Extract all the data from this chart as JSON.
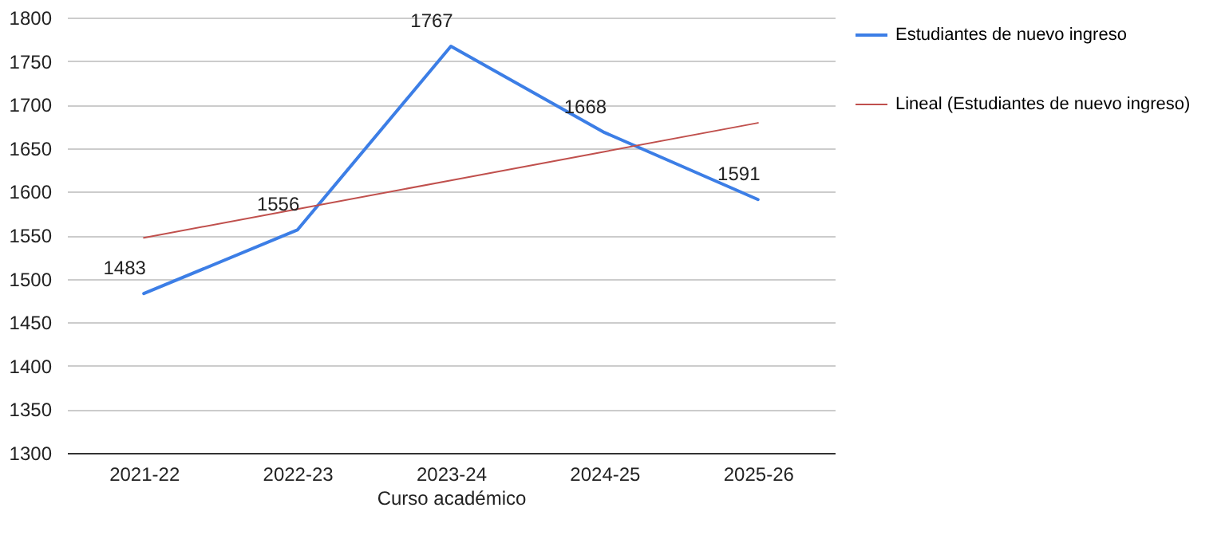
{
  "chart_data": {
    "type": "line",
    "xlabel": "Curso académico",
    "categories": [
      "2021-22",
      "2022-23",
      "2023-24",
      "2024-25",
      "2025-26"
    ],
    "series": [
      {
        "name": "Estudiantes de nuevo ingreso",
        "color": "#3c7ee6",
        "values": [
          1483,
          1556,
          1767,
          1668,
          1591
        ],
        "value_labels": [
          "1483",
          "1556",
          "1767",
          "1668",
          "1591"
        ]
      },
      {
        "name": "Lineal (Estudiantes de nuevo ingreso)",
        "color": "#c0504d",
        "values": [
          1547,
          1580,
          1613,
          1646,
          1679
        ]
      }
    ],
    "ylim": [
      1300,
      1800
    ],
    "yticks": [
      1300,
      1350,
      1400,
      1450,
      1500,
      1550,
      1600,
      1650,
      1700,
      1750,
      1800
    ],
    "grid": "y",
    "legend": "right",
    "marker": "none",
    "line_style": "solid"
  }
}
